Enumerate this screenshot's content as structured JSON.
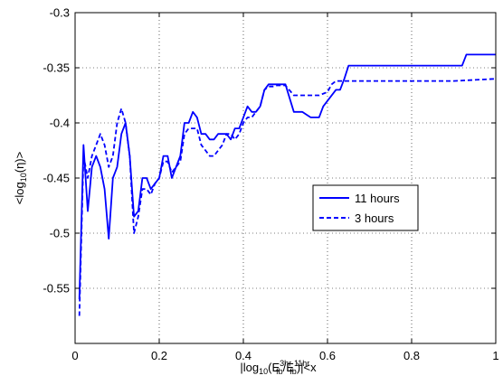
{
  "chart_data": {
    "type": "line",
    "title": "",
    "xlabel": "|log10(E_fb^3hr/E_fb^11hr)|<x",
    "xlabel_parts": {
      "open": "|log",
      "sub1": "10",
      "paren": "(E",
      "sup1": "3hr",
      "sub2": "fb",
      "slash": "/E",
      "sup2": "11hr",
      "sub3": "fb",
      "close": ")|<x"
    },
    "ylabel": "<log10(η)>",
    "ylabel_parts": {
      "open": "<log",
      "sub": "10",
      "close": "(η)>"
    },
    "xlim": [
      0,
      1
    ],
    "ylim": [
      -0.6,
      -0.3
    ],
    "xticks": [
      0,
      0.2,
      0.4,
      0.6,
      0.8,
      1
    ],
    "xtick_labels": [
      "0",
      "0.2",
      "0.4",
      "0.6",
      "0.8",
      "1"
    ],
    "yticks": [
      -0.55,
      -0.5,
      -0.45,
      -0.4,
      -0.35,
      -0.3
    ],
    "ytick_labels": [
      "-0.55",
      "-0.5",
      "-0.45",
      "-0.4",
      "-0.35",
      "-0.3"
    ],
    "grid": true,
    "legend_position": "right-middle",
    "series": [
      {
        "name": "11 hours",
        "style": "solid",
        "color": "#0000ff",
        "x": [
          0.01,
          0.02,
          0.03,
          0.04,
          0.05,
          0.06,
          0.07,
          0.08,
          0.09,
          0.1,
          0.11,
          0.12,
          0.13,
          0.14,
          0.15,
          0.16,
          0.17,
          0.18,
          0.19,
          0.2,
          0.21,
          0.22,
          0.23,
          0.24,
          0.25,
          0.26,
          0.27,
          0.28,
          0.29,
          0.3,
          0.31,
          0.32,
          0.33,
          0.34,
          0.35,
          0.36,
          0.37,
          0.38,
          0.39,
          0.4,
          0.41,
          0.42,
          0.43,
          0.44,
          0.45,
          0.46,
          0.47,
          0.48,
          0.5,
          0.52,
          0.53,
          0.54,
          0.56,
          0.58,
          0.59,
          0.6,
          0.62,
          0.63,
          0.64,
          0.65,
          0.7,
          0.8,
          0.9,
          0.92,
          0.93,
          1.0
        ],
        "y": [
          -0.56,
          -0.42,
          -0.48,
          -0.44,
          -0.43,
          -0.44,
          -0.46,
          -0.505,
          -0.45,
          -0.44,
          -0.41,
          -0.4,
          -0.43,
          -0.485,
          -0.48,
          -0.45,
          -0.45,
          -0.46,
          -0.455,
          -0.45,
          -0.43,
          -0.43,
          -0.45,
          -0.44,
          -0.43,
          -0.4,
          -0.4,
          -0.39,
          -0.395,
          -0.41,
          -0.41,
          -0.415,
          -0.415,
          -0.41,
          -0.41,
          -0.41,
          -0.415,
          -0.405,
          -0.405,
          -0.395,
          -0.385,
          -0.39,
          -0.39,
          -0.385,
          -0.37,
          -0.365,
          -0.365,
          -0.365,
          -0.365,
          -0.39,
          -0.39,
          -0.39,
          -0.395,
          -0.395,
          -0.385,
          -0.38,
          -0.37,
          -0.37,
          -0.36,
          -0.348,
          -0.348,
          -0.348,
          -0.348,
          -0.348,
          -0.338,
          -0.338
        ]
      },
      {
        "name": "3 hours",
        "style": "dashed",
        "color": "#0000ff",
        "x": [
          0.01,
          0.02,
          0.03,
          0.04,
          0.05,
          0.06,
          0.07,
          0.08,
          0.09,
          0.1,
          0.11,
          0.12,
          0.13,
          0.14,
          0.15,
          0.16,
          0.17,
          0.18,
          0.19,
          0.2,
          0.21,
          0.22,
          0.23,
          0.24,
          0.25,
          0.26,
          0.27,
          0.28,
          0.29,
          0.3,
          0.31,
          0.32,
          0.33,
          0.34,
          0.35,
          0.36,
          0.37,
          0.38,
          0.39,
          0.4,
          0.41,
          0.42,
          0.43,
          0.44,
          0.45,
          0.46,
          0.47,
          0.48,
          0.5,
          0.52,
          0.54,
          0.56,
          0.58,
          0.6,
          0.61,
          0.62,
          0.63,
          0.64,
          0.65,
          0.7,
          0.8,
          0.9,
          1.0
        ],
        "y": [
          -0.575,
          -0.43,
          -0.45,
          -0.43,
          -0.42,
          -0.41,
          -0.42,
          -0.44,
          -0.43,
          -0.4,
          -0.387,
          -0.4,
          -0.43,
          -0.5,
          -0.485,
          -0.46,
          -0.46,
          -0.465,
          -0.455,
          -0.45,
          -0.435,
          -0.435,
          -0.445,
          -0.44,
          -0.435,
          -0.41,
          -0.405,
          -0.405,
          -0.405,
          -0.42,
          -0.425,
          -0.43,
          -0.43,
          -0.425,
          -0.42,
          -0.41,
          -0.41,
          -0.415,
          -0.41,
          -0.4,
          -0.395,
          -0.395,
          -0.39,
          -0.385,
          -0.37,
          -0.367,
          -0.367,
          -0.366,
          -0.366,
          -0.375,
          -0.375,
          -0.375,
          -0.375,
          -0.372,
          -0.365,
          -0.362,
          -0.362,
          -0.362,
          -0.362,
          -0.362,
          -0.362,
          -0.362,
          -0.36
        ]
      }
    ]
  }
}
